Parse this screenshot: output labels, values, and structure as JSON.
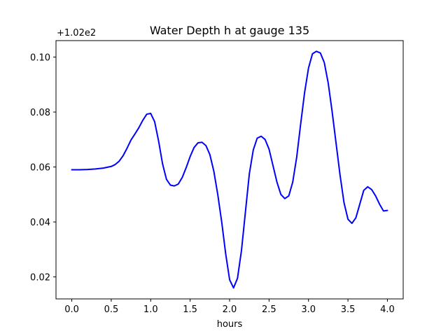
{
  "chart_data": {
    "type": "line",
    "title": "Water Depth h at gauge 135",
    "xlabel": "hours",
    "ylabel": "",
    "offset_text": "+1.02e2",
    "xlim": [
      -0.2,
      4.2
    ],
    "ylim": [
      0.012,
      0.106
    ],
    "xticks": [
      0.0,
      0.5,
      1.0,
      1.5,
      2.0,
      2.5,
      3.0,
      3.5,
      4.0
    ],
    "xtick_labels": [
      "0.0",
      "0.5",
      "1.0",
      "1.5",
      "2.0",
      "2.5",
      "3.0",
      "3.5",
      "4.0"
    ],
    "yticks": [
      0.02,
      0.04,
      0.06,
      0.08,
      0.1
    ],
    "ytick_labels": [
      "0.02",
      "0.04",
      "0.06",
      "0.08",
      "0.10"
    ],
    "grid": false,
    "series": [
      {
        "color": "#0000ff",
        "x": [
          0.0,
          0.1,
          0.2,
          0.3,
          0.4,
          0.5,
          0.55,
          0.6,
          0.65,
          0.7,
          0.75,
          0.8,
          0.85,
          0.9,
          0.95,
          1.0,
          1.05,
          1.1,
          1.15,
          1.2,
          1.25,
          1.3,
          1.35,
          1.4,
          1.45,
          1.5,
          1.55,
          1.6,
          1.65,
          1.7,
          1.75,
          1.8,
          1.85,
          1.9,
          1.95,
          2.0,
          2.05,
          2.1,
          2.15,
          2.2,
          2.25,
          2.3,
          2.35,
          2.4,
          2.45,
          2.5,
          2.55,
          2.6,
          2.65,
          2.7,
          2.75,
          2.8,
          2.85,
          2.9,
          2.95,
          3.0,
          3.05,
          3.1,
          3.15,
          3.2,
          3.25,
          3.3,
          3.35,
          3.4,
          3.45,
          3.5,
          3.55,
          3.6,
          3.65,
          3.7,
          3.75,
          3.8,
          3.85,
          3.9,
          3.95,
          4.0
        ],
        "y": [
          0.059,
          0.059,
          0.0591,
          0.0593,
          0.0596,
          0.0602,
          0.0609,
          0.0621,
          0.0641,
          0.0668,
          0.0698,
          0.072,
          0.0743,
          0.077,
          0.0792,
          0.0795,
          0.0765,
          0.0695,
          0.0612,
          0.0555,
          0.0534,
          0.0531,
          0.0538,
          0.0562,
          0.0598,
          0.0638,
          0.0671,
          0.0688,
          0.069,
          0.0678,
          0.0645,
          0.0585,
          0.05,
          0.04,
          0.0285,
          0.019,
          0.016,
          0.0195,
          0.0295,
          0.0435,
          0.0575,
          0.0662,
          0.0705,
          0.0712,
          0.07,
          0.0665,
          0.0605,
          0.0545,
          0.05,
          0.0485,
          0.0495,
          0.0545,
          0.0635,
          0.0755,
          0.087,
          0.096,
          0.1012,
          0.1021,
          0.1015,
          0.098,
          0.0905,
          0.08,
          0.0685,
          0.057,
          0.047,
          0.041,
          0.0395,
          0.0415,
          0.0465,
          0.0515,
          0.0528,
          0.0518,
          0.0495,
          0.0465,
          0.044,
          0.0442
        ]
      }
    ]
  }
}
